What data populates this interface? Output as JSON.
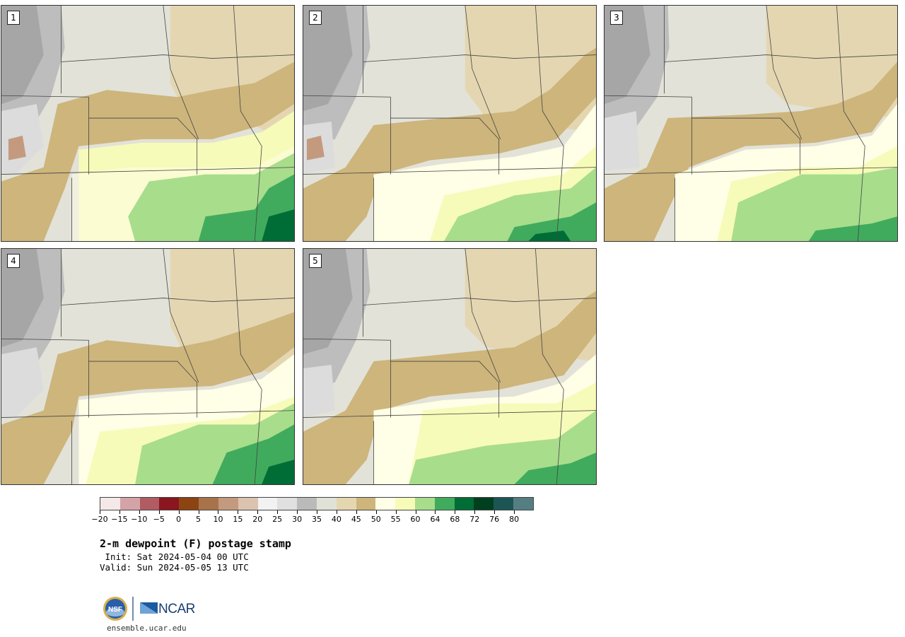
{
  "title": "2-m dewpoint (F) postage stamp",
  "init_line": " Init: Sat 2024-05-04 00 UTC",
  "valid_line": "Valid: Sun 2024-05-05 13 UTC",
  "panels": [
    "1",
    "2",
    "3",
    "4",
    "5"
  ],
  "colorbar": {
    "colors": [
      "#f4e8e8",
      "#d4a3a8",
      "#b05c62",
      "#8a1620",
      "#8c4413",
      "#a8734a",
      "#c49a7e",
      "#dcc3b0",
      "#f2f2f2",
      "#e0e0e0",
      "#bababa",
      "#e1e2d6",
      "#e4d6b1",
      "#cdb57c",
      "#fffee6",
      "#f7fbb9",
      "#a8dd8c",
      "#41ab5d",
      "#006d36",
      "#00401f",
      "#1d5555",
      "#547e82"
    ],
    "tick_labels": [
      "−20",
      "−15",
      "−10",
      "−5",
      "0",
      "5",
      "10",
      "15",
      "20",
      "25",
      "30",
      "35",
      "40",
      "45",
      "50",
      "55",
      "60",
      "64",
      "68",
      "72",
      "76",
      "80"
    ]
  },
  "logo_text": "NCAR",
  "logo_seal_text": "NSF",
  "site": "ensemble.ucar.edu"
}
